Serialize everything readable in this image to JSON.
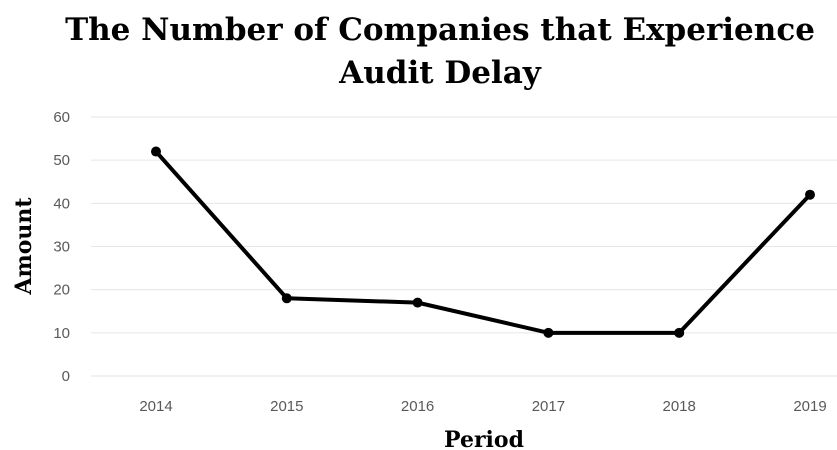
{
  "chart_data": {
    "type": "line",
    "title": "The Number of Companies that Experience Audit Delay",
    "title_lines": [
      "The Number of Companies that Experience",
      "Audit Delay"
    ],
    "xlabel": "Period",
    "ylabel": "Amount",
    "categories": [
      "2014",
      "2015",
      "2016",
      "2017",
      "2018",
      "2019"
    ],
    "series": [
      {
        "values": [
          52,
          18,
          17,
          10,
          10,
          42
        ]
      }
    ],
    "ylim": [
      0,
      60
    ],
    "yticks": [
      0,
      10,
      20,
      30,
      40,
      50,
      60
    ],
    "grid": true,
    "legend": "none",
    "colors": {
      "line": "#000000",
      "grid": "#e6e6e6",
      "tick_text": "#595959"
    }
  }
}
